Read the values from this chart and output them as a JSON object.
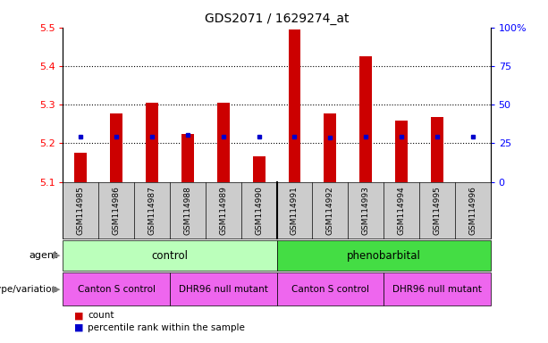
{
  "title": "GDS2071 / 1629274_at",
  "samples": [
    "GSM114985",
    "GSM114986",
    "GSM114987",
    "GSM114988",
    "GSM114989",
    "GSM114990",
    "GSM114991",
    "GSM114992",
    "GSM114993",
    "GSM114994",
    "GSM114995",
    "GSM114996"
  ],
  "count_values": [
    5.175,
    5.278,
    5.305,
    5.225,
    5.305,
    5.165,
    5.495,
    5.278,
    5.425,
    5.258,
    5.268,
    5.1
  ],
  "percentile_values": [
    5.218,
    5.218,
    5.218,
    5.222,
    5.218,
    5.218,
    5.218,
    5.215,
    5.218,
    5.218,
    5.218,
    5.218
  ],
  "ylim_left": [
    5.1,
    5.5
  ],
  "ylim_right": [
    0,
    100
  ],
  "yticks_left": [
    5.1,
    5.2,
    5.3,
    5.4,
    5.5
  ],
  "yticks_right": [
    0,
    25,
    50,
    75,
    100
  ],
  "bar_color": "#cc0000",
  "dot_color": "#0000cc",
  "bar_bottom": 5.1,
  "agent_color_light": "#bbffbb",
  "agent_color_dark": "#44dd44",
  "genotype_color": "#ee66ee",
  "xticklabels_bg": "#cccccc",
  "legend_count_color": "#cc0000",
  "legend_dot_color": "#0000cc",
  "agent_group_spans": [
    [
      0,
      5,
      "control"
    ],
    [
      6,
      11,
      "phenobarbital"
    ]
  ],
  "genotype_group_spans": [
    [
      0,
      2,
      "Canton S control"
    ],
    [
      3,
      5,
      "DHR96 null mutant"
    ],
    [
      6,
      8,
      "Canton S control"
    ],
    [
      9,
      11,
      "DHR96 null mutant"
    ]
  ]
}
